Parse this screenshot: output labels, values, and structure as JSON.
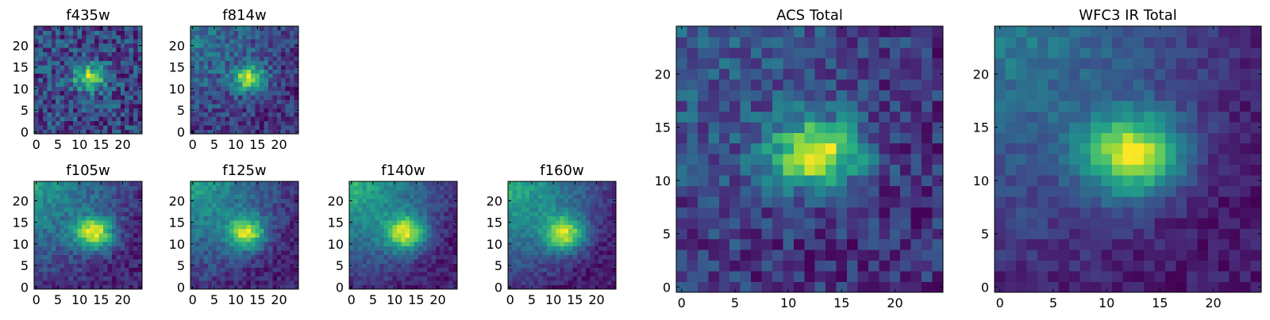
{
  "chart_data": [
    {
      "type": "heatmap",
      "title": "f435w",
      "grid_size": [
        25,
        25
      ],
      "x_ticks": [
        0,
        5,
        10,
        15,
        20
      ],
      "y_ticks": [
        0,
        5,
        10,
        15,
        20
      ],
      "xlim": [
        -0.5,
        24.5
      ],
      "ylim": [
        -0.5,
        24.5
      ],
      "colormap": "viridis",
      "source": {
        "peak": [
          12.5,
          12.5
        ],
        "amplitude": 1.0,
        "sigma": [
          2.6,
          2.0
        ]
      },
      "gradient": {
        "corner": "top-left",
        "strength": 0.05
      },
      "noise": 0.24,
      "grid": "off"
    },
    {
      "type": "heatmap",
      "title": "f814w",
      "grid_size": [
        25,
        25
      ],
      "x_ticks": [
        0,
        5,
        10,
        15,
        20
      ],
      "y_ticks": [
        0,
        5,
        10,
        15,
        20
      ],
      "xlim": [
        -0.5,
        24.5
      ],
      "ylim": [
        -0.5,
        24.5
      ],
      "colormap": "viridis",
      "source": {
        "peak": [
          13.0,
          12.5
        ],
        "amplitude": 1.0,
        "sigma": [
          2.6,
          2.0
        ]
      },
      "gradient": {
        "corner": "top-left",
        "strength": 0.45
      },
      "noise": 0.2,
      "grid": "off"
    },
    {
      "type": "heatmap",
      "title": "f105w",
      "grid_size": [
        25,
        25
      ],
      "x_ticks": [
        0,
        5,
        10,
        15,
        20
      ],
      "y_ticks": [
        0,
        5,
        10,
        15,
        20
      ],
      "xlim": [
        -0.5,
        24.5
      ],
      "ylim": [
        -0.5,
        24.5
      ],
      "colormap": "viridis",
      "source": {
        "peak": [
          13.5,
          12.5
        ],
        "amplitude": 1.0,
        "sigma": [
          3.0,
          2.6
        ]
      },
      "gradient": {
        "corner": "top-left",
        "strength": 0.75
      },
      "noise": 0.12,
      "grid": "off"
    },
    {
      "type": "heatmap",
      "title": "f125w",
      "grid_size": [
        25,
        25
      ],
      "x_ticks": [
        0,
        5,
        10,
        15,
        20
      ],
      "y_ticks": [
        0,
        5,
        10,
        15,
        20
      ],
      "xlim": [
        -0.5,
        24.5
      ],
      "ylim": [
        -0.5,
        24.5
      ],
      "colormap": "viridis",
      "source": {
        "peak": [
          12.5,
          12.5
        ],
        "amplitude": 1.0,
        "sigma": [
          3.0,
          2.6
        ]
      },
      "gradient": {
        "corner": "top-left",
        "strength": 0.85
      },
      "noise": 0.12,
      "grid": "off"
    },
    {
      "type": "heatmap",
      "title": "f140w",
      "grid_size": [
        25,
        25
      ],
      "x_ticks": [
        0,
        5,
        10,
        15,
        20
      ],
      "y_ticks": [
        0,
        5,
        10,
        15,
        20
      ],
      "xlim": [
        -0.5,
        24.5
      ],
      "ylim": [
        -0.5,
        24.5
      ],
      "colormap": "viridis",
      "source": {
        "peak": [
          12.5,
          12.5
        ],
        "amplitude": 1.0,
        "sigma": [
          3.2,
          2.8
        ]
      },
      "gradient": {
        "corner": "top-left",
        "strength": 0.95
      },
      "noise": 0.1,
      "grid": "off"
    },
    {
      "type": "heatmap",
      "title": "f160w",
      "grid_size": [
        25,
        25
      ],
      "x_ticks": [
        0,
        5,
        10,
        15,
        20
      ],
      "y_ticks": [
        0,
        5,
        10,
        15,
        20
      ],
      "xlim": [
        -0.5,
        24.5
      ],
      "ylim": [
        -0.5,
        24.5
      ],
      "colormap": "viridis",
      "source": {
        "peak": [
          12.5,
          12.5
        ],
        "amplitude": 1.0,
        "sigma": [
          3.2,
          2.8
        ]
      },
      "gradient": {
        "corner": "top-left",
        "strength": 1.0
      },
      "noise": 0.1,
      "grid": "off"
    },
    {
      "type": "heatmap",
      "title": "ACS Total",
      "grid_size": [
        25,
        25
      ],
      "x_ticks": [
        0,
        5,
        10,
        15,
        20
      ],
      "y_ticks": [
        0,
        5,
        10,
        15,
        20
      ],
      "xlim": [
        -0.5,
        24.5
      ],
      "ylim": [
        -0.5,
        24.5
      ],
      "colormap": "viridis",
      "source": {
        "peak": [
          12.5,
          12.5
        ],
        "amplitude": 1.0,
        "sigma": [
          3.0,
          2.2
        ]
      },
      "gradient": {
        "corner": "top-left",
        "strength": 0.25
      },
      "noise": 0.16,
      "grid": "off"
    },
    {
      "type": "heatmap",
      "title": "WFC3 IR Total",
      "grid_size": [
        25,
        25
      ],
      "x_ticks": [
        0,
        5,
        10,
        15,
        20
      ],
      "y_ticks": [
        0,
        5,
        10,
        15,
        20
      ],
      "xlim": [
        -0.5,
        24.5
      ],
      "ylim": [
        -0.5,
        24.5
      ],
      "colormap": "viridis",
      "source": {
        "peak": [
          12.5,
          12.5
        ],
        "amplitude": 1.0,
        "sigma": [
          3.2,
          2.6
        ]
      },
      "gradient": {
        "corner": "top-left",
        "strength": 0.55
      },
      "noise": 0.08,
      "grid": "off"
    }
  ]
}
